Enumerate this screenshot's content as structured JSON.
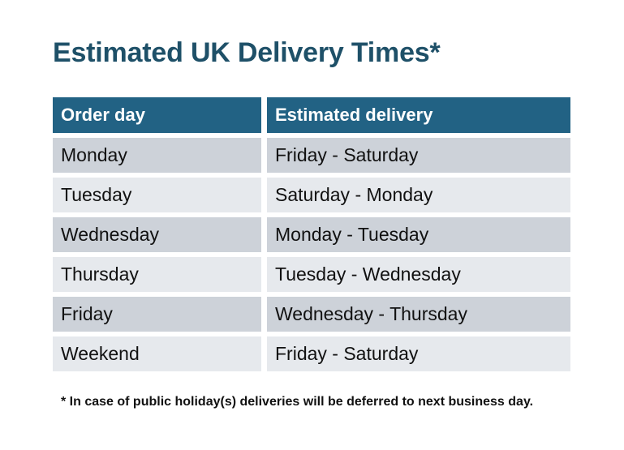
{
  "title": "Estimated UK Delivery Times*",
  "table": {
    "columns": [
      "Order day",
      "Estimated delivery"
    ],
    "rows": [
      {
        "order_day": "Monday",
        "estimated_delivery": "Friday - Saturday"
      },
      {
        "order_day": "Tuesday",
        "estimated_delivery": "Saturday - Monday"
      },
      {
        "order_day": "Wednesday",
        "estimated_delivery": "Monday - Tuesday"
      },
      {
        "order_day": "Thursday",
        "estimated_delivery": "Tuesday - Wednesday"
      },
      {
        "order_day": "Friday",
        "estimated_delivery": "Wednesday - Thursday"
      },
      {
        "order_day": "Weekend",
        "estimated_delivery": "Friday - Saturday"
      }
    ]
  },
  "footnote": "* In case of public holiday(s) deliveries will be deferred to next business day.",
  "colors": {
    "title_text": "#1e5068",
    "header_bg": "#226284",
    "header_text": "#ffffff",
    "row_odd_bg": "#cdd2d9",
    "row_even_bg": "#e6e9ed",
    "body_text": "#111111",
    "page_bg": "#ffffff"
  }
}
